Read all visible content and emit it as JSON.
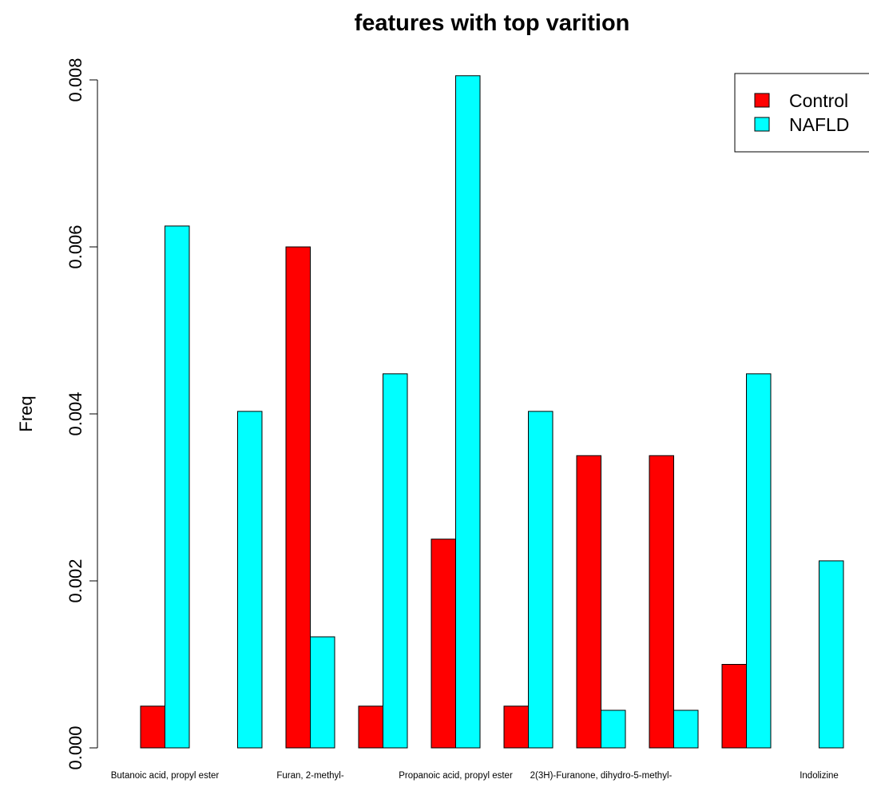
{
  "chart_data": {
    "type": "bar",
    "title": "features with top varition",
    "xlabel": "",
    "ylabel": "Freq",
    "ylim": [
      0,
      0.008
    ],
    "yticks": [
      "0.000",
      "0.002",
      "0.004",
      "0.006",
      "0.008"
    ],
    "ytick_values": [
      0,
      0.002,
      0.004,
      0.006,
      0.008
    ],
    "categories": [
      "Butanoic acid, propyl ester",
      "",
      "Furan, 2-methyl-",
      "",
      "Propanoic acid, propyl ester",
      "",
      "2(3H)-Furanone, dihydro-5-methyl-",
      "",
      "",
      "Indolizine"
    ],
    "series": [
      {
        "name": "Control",
        "color": "#ff0000",
        "values": [
          0.0005,
          0,
          0.006,
          0.0005,
          0.0025,
          0.0005,
          0.0035,
          0.0035,
          0.001,
          0
        ]
      },
      {
        "name": "NAFLD",
        "color": "#00ffff",
        "values": [
          0.00625,
          0.00403,
          0.00133,
          0.00448,
          0.00805,
          0.00403,
          0.00045,
          0.00045,
          0.00448,
          0.00224
        ]
      }
    ],
    "legend_position": "top-right",
    "grid": false
  }
}
